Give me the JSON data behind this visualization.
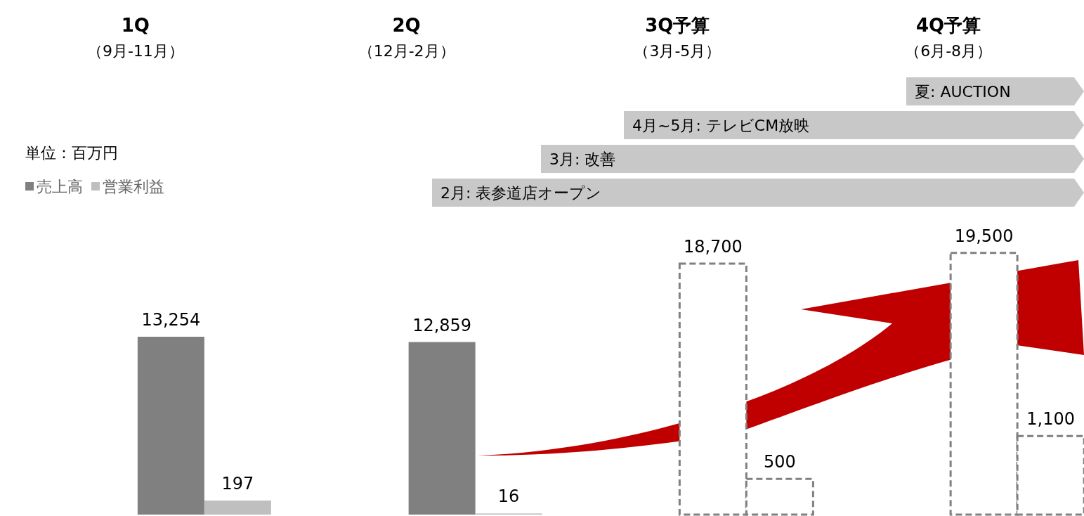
{
  "chart_data": {
    "type": "bar",
    "categories": [
      "1Q（9月-11月）",
      "2Q（12月-2月）",
      "3Q予算（3月-5月）",
      "4Q予算（6月-8月）"
    ],
    "series": [
      {
        "name": "売上高",
        "color": "#808080",
        "colors": [
          "#808080",
          "#808080",
          "#ffffff",
          "#ffffff"
        ],
        "values": [
          13254,
          12859,
          18700,
          19500
        ],
        "value_labels": [
          "13,254",
          "12,859",
          "18,700",
          "19,500"
        ]
      },
      {
        "name": "営業利益",
        "color": "#bfbfbf",
        "colors": [
          "#bfbfbf",
          "#bfbfbf",
          "#ffffff",
          "#ffffff"
        ],
        "values": [
          197,
          16,
          500,
          1100
        ],
        "value_labels": [
          "197",
          "16",
          "500",
          "1,100"
        ],
        "axis": "y2"
      }
    ],
    "tick_labels": false,
    "legend": "top left",
    "legend_title": "単位：百万円",
    "annotations": [
      "夏: AUCTION",
      "4月~5月: テレビCM放映",
      "3月: 改善",
      "2月: 表参道店オープン"
    ]
  }
}
